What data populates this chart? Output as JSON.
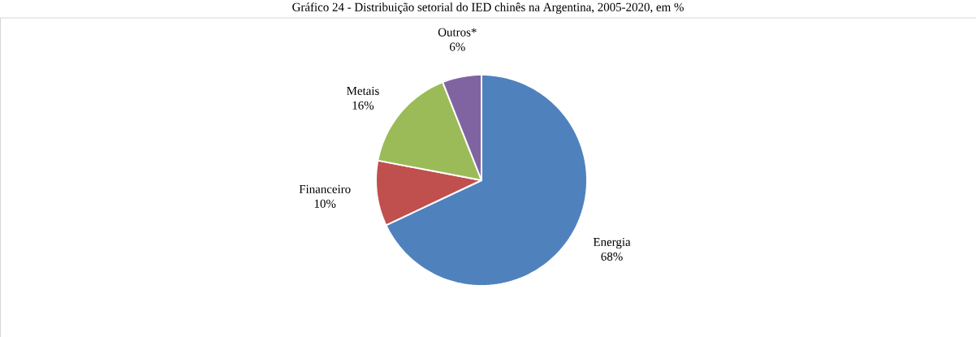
{
  "chart_data": {
    "type": "pie",
    "title": "Gráfico 24 - Distribuição setorial do IED chinês na Argentina, 2005-2020, em %",
    "categories": [
      "Energia",
      "Financeiro",
      "Metais",
      "Outros*"
    ],
    "values": [
      68,
      10,
      16,
      6
    ],
    "value_labels": [
      "68%",
      "10%",
      "16%",
      "6%"
    ],
    "colors": [
      "#4f81bd",
      "#c0504d",
      "#9bbb59",
      "#8064a2"
    ]
  }
}
